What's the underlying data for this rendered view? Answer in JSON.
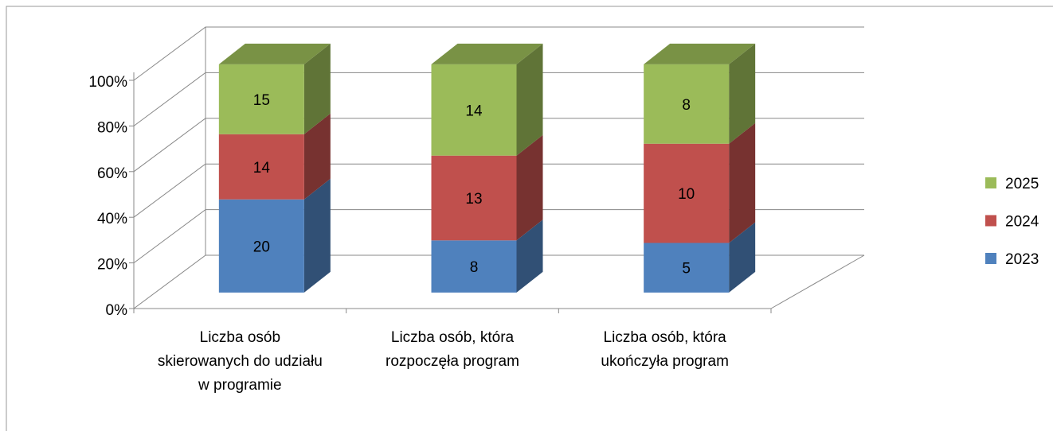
{
  "chart_data": {
    "type": "bar",
    "stacking": "percent",
    "categories": [
      "Liczba osób skierowanych do udziału w programie",
      "Liczba osób, która rozpoczęła program",
      "Liczba osób, która ukończyła program"
    ],
    "series": [
      {
        "name": "2023",
        "color": "#4f81bd",
        "values": [
          20,
          8,
          5
        ]
      },
      {
        "name": "2024",
        "color": "#c0504d",
        "values": [
          14,
          13,
          10
        ]
      },
      {
        "name": "2025",
        "color": "#9bbb59",
        "values": [
          15,
          14,
          8
        ]
      }
    ],
    "ylim": [
      0,
      100
    ],
    "yticks": [
      {
        "value": 0,
        "label": "0%"
      },
      {
        "value": 20,
        "label": "20%"
      },
      {
        "value": 40,
        "label": "40%"
      },
      {
        "value": 60,
        "label": "60%"
      },
      {
        "value": 80,
        "label": "80%"
      },
      {
        "value": 100,
        "label": "100%"
      }
    ],
    "grid": true,
    "legend": "right"
  }
}
